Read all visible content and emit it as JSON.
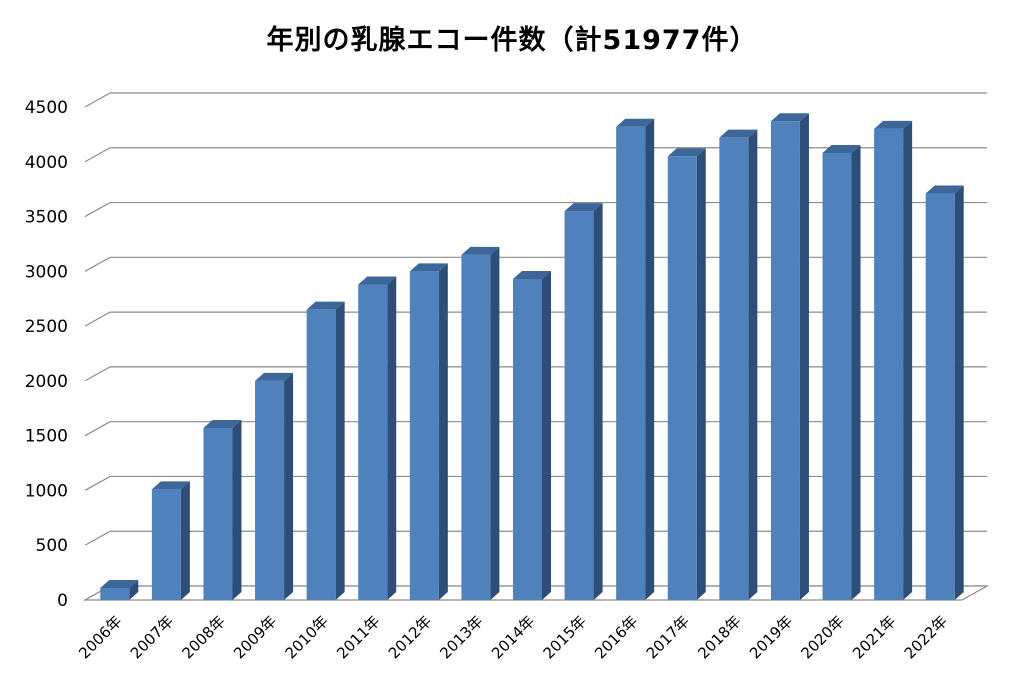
{
  "chart_data": {
    "type": "bar",
    "title": "年別の乳腺エコー件数（計51977件）",
    "categories": [
      "2006年",
      "2007年",
      "2008年",
      "2009年",
      "2010年",
      "2011年",
      "2012年",
      "2013年",
      "2014年",
      "2015年",
      "2016年",
      "2017年",
      "2018年",
      "2019年",
      "2020年",
      "2021年",
      "2022年"
    ],
    "values": [
      110,
      1010,
      1570,
      2000,
      2650,
      2880,
      3000,
      3150,
      2930,
      3550,
      4320,
      4050,
      4220,
      4370,
      4080,
      4300,
      3710
    ],
    "ylim": [
      0,
      4500
    ],
    "yticks": [
      0,
      500,
      1000,
      1500,
      2000,
      2500,
      3000,
      3500,
      4000,
      4500
    ],
    "grid": true,
    "legend": "none",
    "bar_color": "#4F81BD",
    "bar_side_color": "#2E4E7A",
    "bar_top_color": "#3D6699"
  }
}
